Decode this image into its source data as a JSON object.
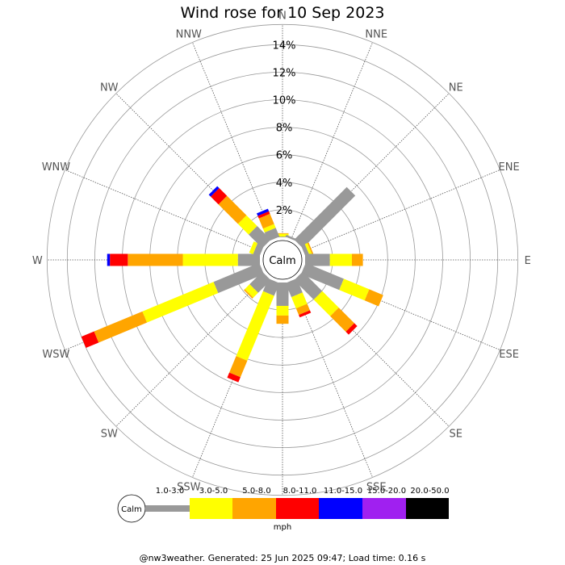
{
  "title": "Wind rose for 10 Sep 2023",
  "footer": "@nw3weather. Generated: 25 Jun 2025 09:47; Load time: 0.16 s",
  "calm_label": "Calm",
  "unit": "mph",
  "chart_data": {
    "type": "wind-rose",
    "title": "Wind rose for 10 Sep 2023",
    "directions": [
      "N",
      "NNE",
      "NE",
      "ENE",
      "E",
      "ESE",
      "SE",
      "SSE",
      "S",
      "SSW",
      "SW",
      "WSW",
      "W",
      "WNW",
      "NW",
      "NNW"
    ],
    "radial_ticks": [
      "2%",
      "4%",
      "6%",
      "8%",
      "10%",
      "12%",
      "14%"
    ],
    "radial_max": 14,
    "speed_bins": [
      {
        "label": "1.0-3.0",
        "color": "#999999"
      },
      {
        "label": "3.0-5.0",
        "color": "#ffff00"
      },
      {
        "label": "5.0-8.0",
        "color": "#ffa500"
      },
      {
        "label": "8.0-11.0",
        "color": "#ff0000"
      },
      {
        "label": "11.0-15.0",
        "color": "#0000ff"
      },
      {
        "label": "15.0-20.0",
        "color": "#a020f0"
      },
      {
        "label": "20.0-50.0",
        "color": "#000000"
      }
    ],
    "series": [
      {
        "direction": "N",
        "values": [
          0.05,
          0.2,
          0.05,
          0,
          0,
          0,
          0
        ]
      },
      {
        "direction": "NNE",
        "values": [
          0.15,
          0,
          0,
          0,
          0,
          0,
          0
        ]
      },
      {
        "direction": "NE",
        "values": [
          5.4,
          0,
          0,
          0,
          0,
          0,
          0
        ]
      },
      {
        "direction": "ENE",
        "values": [
          0.3,
          0.2,
          0.1,
          0,
          0,
          0,
          0
        ]
      },
      {
        "direction": "E",
        "values": [
          1.8,
          1.6,
          0.8,
          0,
          0,
          0,
          0
        ]
      },
      {
        "direction": "ESE",
        "values": [
          3.0,
          2.0,
          1.1,
          0,
          0,
          0,
          0
        ]
      },
      {
        "direction": "SE",
        "values": [
          2.0,
          1.7,
          1.6,
          0.3,
          0,
          0,
          0
        ]
      },
      {
        "direction": "SSE",
        "values": [
          1.1,
          0.9,
          0.5,
          0.2,
          0,
          0,
          0
        ]
      },
      {
        "direction": "S",
        "values": [
          1.7,
          0.7,
          0.6,
          0,
          0,
          0,
          0
        ]
      },
      {
        "direction": "SSW",
        "values": [
          1.0,
          5.1,
          1.3,
          0.4,
          0,
          0,
          0
        ]
      },
      {
        "direction": "SW",
        "values": [
          1.3,
          0.5,
          0.1,
          0,
          0,
          0,
          0
        ]
      },
      {
        "direction": "WSW",
        "values": [
          3.6,
          5.6,
          3.8,
          1.0,
          0,
          0,
          0
        ]
      },
      {
        "direction": "W",
        "values": [
          1.6,
          4.0,
          4.0,
          1.3,
          0.2,
          0,
          0
        ]
      },
      {
        "direction": "WNW",
        "values": [
          0.5,
          0.3,
          0,
          0,
          0,
          0,
          0
        ]
      },
      {
        "direction": "NW",
        "values": [
          1.4,
          1.1,
          2.0,
          0.8,
          0.2,
          0,
          0
        ]
      },
      {
        "direction": "NNW",
        "values": [
          0.7,
          0.3,
          0.8,
          0.2,
          0.2,
          0,
          0
        ]
      }
    ]
  }
}
